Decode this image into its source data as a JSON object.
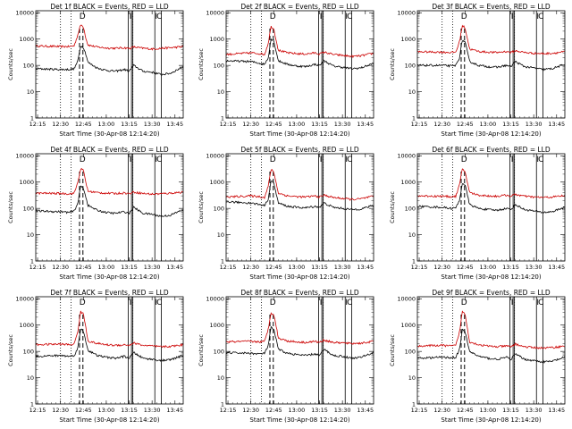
{
  "chart_data": {
    "type": "line",
    "layout": {
      "rows": 3,
      "cols": 3
    },
    "x_range_minutes": [
      12.23,
      13.84
    ],
    "x_tick_labels": [
      "12:15",
      "12:30",
      "12:45",
      "13:00",
      "13:15",
      "13:30",
      "13:45"
    ],
    "y_log_range": [
      1,
      12000
    ],
    "y_tick_labels": [
      "1",
      "10",
      "100",
      "1000",
      "10000"
    ],
    "colors": {
      "events": "#000000",
      "lld": "#cc0000"
    },
    "markers": {
      "dotted": [
        12.5,
        12.615,
        13.29
      ],
      "dashed": [
        12.708,
        12.745
      ],
      "solid": [
        13.24,
        13.275,
        13.29,
        13.53,
        13.6
      ]
    },
    "marker_letters": [
      {
        "x": 12.73,
        "text": "D"
      },
      {
        "x": 13.255,
        "text": "I"
      },
      {
        "x": 13.535,
        "text": "I"
      },
      {
        "x": 13.57,
        "text": "C"
      }
    ],
    "panels": [
      {
        "title": "Det 1f BLACK = Events, RED = LLD",
        "ylabel": "Counts/sec",
        "xlabel": "Start Time (30-Apr-08 12:14:20)",
        "black": {
          "x": [
            12.23,
            12.5,
            12.6,
            12.65,
            12.69,
            12.72,
            12.75,
            12.78,
            12.8,
            12.9,
            13.0,
            13.1,
            13.2,
            13.25,
            13.3,
            13.4,
            13.5,
            13.6,
            13.7,
            13.84
          ],
          "y": [
            75,
            70,
            70,
            75,
            150,
            550,
            500,
            250,
            130,
            80,
            65,
            60,
            70,
            60,
            100,
            60,
            55,
            45,
            50,
            90
          ]
        },
        "red": {
          "x": [
            12.23,
            12.5,
            12.6,
            12.65,
            12.69,
            12.72,
            12.75,
            12.78,
            12.8,
            12.9,
            13.0,
            13.1,
            13.2,
            13.25,
            13.3,
            13.4,
            13.5,
            13.6,
            13.7,
            13.84
          ],
          "y": [
            550,
            520,
            520,
            560,
            1500,
            3500,
            3000,
            1000,
            600,
            500,
            460,
            450,
            470,
            440,
            500,
            450,
            420,
            450,
            470,
            520
          ]
        }
      },
      {
        "title": "Det 2f BLACK = Events, RED = LLD",
        "ylabel": "Counts/sec",
        "xlabel": "Start Time (30-Apr-08 12:14:20)",
        "black": {
          "x": [
            12.23,
            12.5,
            12.6,
            12.65,
            12.69,
            12.72,
            12.75,
            12.78,
            12.8,
            12.9,
            13.0,
            13.1,
            13.2,
            13.25,
            13.3,
            13.4,
            13.5,
            13.6,
            13.7,
            13.84
          ],
          "y": [
            150,
            140,
            120,
            110,
            200,
            1000,
            900,
            300,
            150,
            110,
            95,
            90,
            110,
            100,
            150,
            95,
            85,
            75,
            80,
            120
          ]
        },
        "red": {
          "x": [
            12.23,
            12.5,
            12.6,
            12.65,
            12.69,
            12.72,
            12.75,
            12.78,
            12.8,
            12.9,
            13.0,
            13.1,
            13.2,
            13.25,
            13.3,
            13.4,
            13.5,
            13.6,
            13.7,
            13.84
          ],
          "y": [
            260,
            300,
            280,
            260,
            700,
            3000,
            2500,
            800,
            380,
            300,
            280,
            270,
            300,
            270,
            320,
            260,
            240,
            220,
            230,
            290
          ]
        }
      },
      {
        "title": "Det 3f BLACK = Events, RED = LLD",
        "ylabel": "Counts/sec",
        "xlabel": "Start Time (30-Apr-08 12:14:20)",
        "black": {
          "x": [
            12.23,
            12.5,
            12.6,
            12.65,
            12.69,
            12.72,
            12.75,
            12.78,
            12.8,
            12.9,
            13.0,
            13.1,
            13.2,
            13.25,
            13.3,
            13.4,
            13.5,
            13.6,
            13.7,
            13.84
          ],
          "y": [
            100,
            100,
            95,
            100,
            200,
            900,
            800,
            280,
            140,
            100,
            90,
            85,
            100,
            90,
            140,
            90,
            80,
            70,
            75,
            110
          ]
        },
        "red": {
          "x": [
            12.23,
            12.5,
            12.6,
            12.65,
            12.69,
            12.72,
            12.75,
            12.78,
            12.8,
            12.9,
            13.0,
            13.1,
            13.2,
            13.25,
            13.3,
            13.4,
            13.5,
            13.6,
            13.7,
            13.84
          ],
          "y": [
            330,
            320,
            310,
            320,
            800,
            3200,
            2800,
            900,
            420,
            340,
            320,
            310,
            340,
            310,
            360,
            310,
            290,
            280,
            290,
            330
          ]
        }
      },
      {
        "title": "Det 4f BLACK = Events, RED = LLD",
        "ylabel": "Counts/sec",
        "xlabel": "Start Time (30-Apr-08 12:14:20)",
        "black": {
          "x": [
            12.23,
            12.5,
            12.6,
            12.65,
            12.69,
            12.72,
            12.75,
            12.78,
            12.8,
            12.9,
            13.0,
            13.1,
            13.2,
            13.25,
            13.3,
            13.4,
            13.5,
            13.6,
            13.7,
            13.84
          ],
          "y": [
            80,
            75,
            70,
            80,
            160,
            700,
            600,
            250,
            130,
            85,
            70,
            65,
            75,
            65,
            110,
            65,
            60,
            50,
            55,
            90
          ]
        },
        "red": {
          "x": [
            12.23,
            12.5,
            12.6,
            12.65,
            12.69,
            12.72,
            12.75,
            12.78,
            12.8,
            12.9,
            13.0,
            13.1,
            13.2,
            13.25,
            13.3,
            13.4,
            13.5,
            13.6,
            13.7,
            13.84
          ],
          "y": [
            380,
            370,
            360,
            380,
            1000,
            3200,
            2800,
            900,
            450,
            400,
            380,
            370,
            390,
            360,
            420,
            370,
            350,
            360,
            380,
            420
          ]
        }
      },
      {
        "title": "Det 5f BLACK = Events, RED = LLD",
        "ylabel": "Counts/sec",
        "xlabel": "Start Time (30-Apr-08 12:14:20)",
        "black": {
          "x": [
            12.23,
            12.5,
            12.6,
            12.65,
            12.69,
            12.72,
            12.75,
            12.78,
            12.8,
            12.9,
            13.0,
            13.1,
            13.2,
            13.25,
            13.3,
            13.4,
            13.5,
            13.6,
            13.7,
            13.84
          ],
          "y": [
            180,
            160,
            140,
            130,
            230,
            1100,
            950,
            320,
            160,
            120,
            110,
            105,
            120,
            110,
            160,
            110,
            100,
            90,
            95,
            130
          ]
        },
        "red": {
          "x": [
            12.23,
            12.5,
            12.6,
            12.65,
            12.69,
            12.72,
            12.75,
            12.78,
            12.8,
            12.9,
            13.0,
            13.1,
            13.2,
            13.25,
            13.3,
            13.4,
            13.5,
            13.6,
            13.7,
            13.84
          ],
          "y": [
            270,
            300,
            280,
            260,
            700,
            3000,
            2500,
            800,
            380,
            300,
            280,
            270,
            300,
            270,
            320,
            260,
            240,
            220,
            230,
            290
          ]
        }
      },
      {
        "title": "Det 6f BLACK = Events, RED = LLD",
        "ylabel": "Counts/sec",
        "xlabel": "Start Time (30-Apr-08 12:14:20)",
        "black": {
          "x": [
            12.23,
            12.5,
            12.6,
            12.65,
            12.69,
            12.72,
            12.75,
            12.78,
            12.8,
            12.9,
            13.0,
            13.1,
            13.2,
            13.25,
            13.3,
            13.4,
            13.5,
            13.6,
            13.7,
            13.84
          ],
          "y": [
            120,
            110,
            100,
            105,
            200,
            900,
            800,
            280,
            140,
            100,
            90,
            85,
            100,
            90,
            140,
            90,
            80,
            70,
            75,
            110
          ]
        },
        "red": {
          "x": [
            12.23,
            12.5,
            12.6,
            12.65,
            12.69,
            12.72,
            12.75,
            12.78,
            12.8,
            12.9,
            13.0,
            13.1,
            13.2,
            13.25,
            13.3,
            13.4,
            13.5,
            13.6,
            13.7,
            13.84
          ],
          "y": [
            300,
            290,
            280,
            290,
            800,
            3000,
            2600,
            850,
            400,
            320,
            300,
            290,
            320,
            290,
            340,
            290,
            270,
            260,
            270,
            310
          ]
        }
      },
      {
        "title": "Det 7f BLACK = Events, RED = LLD",
        "ylabel": "Counts/sec",
        "xlabel": "Start Time (30-Apr-08 12:14:20)",
        "black": {
          "x": [
            12.23,
            12.5,
            12.6,
            12.65,
            12.69,
            12.72,
            12.75,
            12.78,
            12.8,
            12.9,
            13.0,
            13.1,
            13.2,
            13.25,
            13.3,
            13.4,
            13.5,
            13.6,
            13.7,
            13.84
          ],
          "y": [
            65,
            70,
            65,
            70,
            140,
            700,
            600,
            220,
            110,
            70,
            60,
            55,
            65,
            55,
            90,
            55,
            50,
            45,
            48,
            70
          ]
        },
        "red": {
          "x": [
            12.23,
            12.5,
            12.6,
            12.65,
            12.69,
            12.72,
            12.75,
            12.78,
            12.8,
            12.9,
            13.0,
            13.1,
            13.2,
            13.25,
            13.3,
            13.4,
            13.5,
            13.6,
            13.7,
            13.84
          ],
          "y": [
            180,
            190,
            180,
            190,
            600,
            3200,
            2700,
            700,
            250,
            200,
            180,
            170,
            180,
            170,
            210,
            170,
            160,
            150,
            155,
            180
          ]
        }
      },
      {
        "title": "Det 8f BLACK = Events, RED = LLD",
        "ylabel": "Counts/sec",
        "xlabel": "Start Time (30-Apr-08 12:14:20)",
        "black": {
          "x": [
            12.23,
            12.5,
            12.6,
            12.65,
            12.69,
            12.72,
            12.75,
            12.78,
            12.8,
            12.9,
            13.0,
            13.1,
            13.2,
            13.25,
            13.3,
            13.4,
            13.5,
            13.6,
            13.7,
            13.84
          ],
          "y": [
            90,
            85,
            80,
            85,
            170,
            800,
            700,
            250,
            120,
            85,
            75,
            70,
            80,
            70,
            120,
            70,
            65,
            55,
            60,
            90
          ]
        },
        "red": {
          "x": [
            12.23,
            12.5,
            12.6,
            12.65,
            12.69,
            12.72,
            12.75,
            12.78,
            12.8,
            12.9,
            13.0,
            13.1,
            13.2,
            13.25,
            13.3,
            13.4,
            13.5,
            13.6,
            13.7,
            13.84
          ],
          "y": [
            230,
            240,
            230,
            240,
            700,
            3000,
            2600,
            800,
            320,
            250,
            230,
            220,
            240,
            220,
            270,
            220,
            210,
            200,
            205,
            240
          ]
        }
      },
      {
        "title": "Det 9f BLACK = Events, RED = LLD",
        "ylabel": "Counts/sec",
        "xlabel": "Start Time (30-Apr-08 12:14:20)",
        "black": {
          "x": [
            12.23,
            12.5,
            12.6,
            12.65,
            12.69,
            12.72,
            12.75,
            12.78,
            12.8,
            12.9,
            13.0,
            13.1,
            13.2,
            13.25,
            13.3,
            13.4,
            13.5,
            13.6,
            13.7,
            13.84
          ],
          "y": [
            55,
            60,
            58,
            60,
            120,
            650,
            560,
            200,
            100,
            65,
            55,
            50,
            60,
            50,
            80,
            50,
            45,
            40,
            42,
            60
          ]
        },
        "red": {
          "x": [
            12.23,
            12.5,
            12.6,
            12.65,
            12.69,
            12.72,
            12.75,
            12.78,
            12.8,
            12.9,
            13.0,
            13.1,
            13.2,
            13.25,
            13.3,
            13.4,
            13.5,
            13.6,
            13.7,
            13.84
          ],
          "y": [
            160,
            170,
            160,
            170,
            550,
            3200,
            2700,
            650,
            230,
            180,
            160,
            150,
            160,
            150,
            190,
            150,
            140,
            135,
            140,
            160
          ]
        }
      }
    ]
  }
}
